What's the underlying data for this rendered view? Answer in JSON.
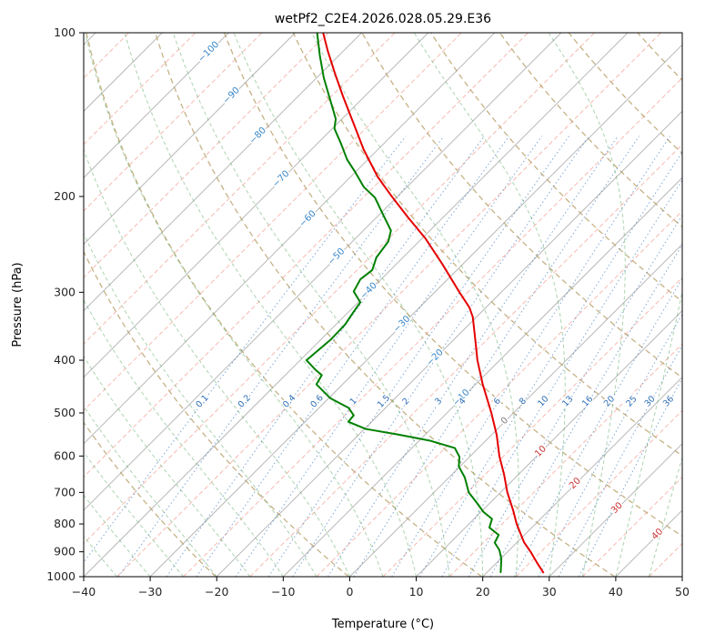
{
  "title": "wetPf2_C2E4.2026.028.05.29.E36",
  "chart_data": {
    "type": "line",
    "variant": "skewT-logP-sounding",
    "title": "wetPf2_C2E4.2026.028.05.29.E36",
    "xlabel": "Temperature (°C)",
    "ylabel": "Pressure (hPa)",
    "xlim": [
      -40,
      50
    ],
    "pressure_lim": [
      1000,
      100
    ],
    "y_scale": "log",
    "skew_c_per_decade": 81.8,
    "x_tick_values": [
      -40,
      -30,
      -20,
      -10,
      0,
      10,
      20,
      30,
      40,
      50
    ],
    "x_tick_labels": [
      "−40",
      "−30",
      "−20",
      "−10",
      "0",
      "10",
      "20",
      "30",
      "40",
      "50"
    ],
    "y_tick_values": [
      100,
      200,
      300,
      400,
      500,
      600,
      700,
      800,
      900,
      1000
    ],
    "y_tick_labels": [
      "100",
      "200",
      "300",
      "400",
      "500",
      "600",
      "700",
      "800",
      "900",
      "1000"
    ],
    "grid": {
      "isotherm_step_c": 10,
      "isotherm_range": [
        -160,
        50
      ],
      "dry_adiabat_theta_k_range": [
        233,
        473,
        20
      ],
      "moist_adiabat_start_c_range": [
        -40,
        60,
        5
      ],
      "mixing_ratio_g_kg": [
        0.1,
        0.2,
        0.4,
        0.6,
        1,
        1.5,
        2,
        3,
        4,
        6,
        8,
        10,
        13,
        16,
        20,
        25,
        30,
        36
      ],
      "mixing_ratio_labels": [
        "0.1",
        "0.2",
        "0.4",
        "0.6",
        "1",
        "1.5",
        "2",
        "3",
        "4",
        "6",
        "8",
        "10",
        "13",
        "16",
        "20",
        "25",
        "30",
        "36"
      ],
      "mixing_label_pressure_hpa": 474,
      "mixing_line_top_hpa": 150
    },
    "isotherm_labels": [
      {
        "t": -100,
        "p": 108,
        "label": "−100"
      },
      {
        "t": -90,
        "p": 130,
        "label": "−90"
      },
      {
        "t": -80,
        "p": 154,
        "label": "−80"
      },
      {
        "t": -70,
        "p": 185,
        "label": "−70"
      },
      {
        "t": -60,
        "p": 219,
        "label": "−60"
      },
      {
        "t": -50,
        "p": 257,
        "label": "−50"
      },
      {
        "t": -40,
        "p": 297,
        "label": "−40"
      },
      {
        "t": -30,
        "p": 342,
        "label": "−30"
      },
      {
        "t": -20,
        "p": 394,
        "label": "−20"
      },
      {
        "t": -10,
        "p": 467,
        "label": "−10"
      },
      {
        "t": 0,
        "p": 515,
        "label": "0"
      },
      {
        "t": 10,
        "p": 586,
        "label": "10"
      },
      {
        "t": 20,
        "p": 671,
        "label": "20"
      },
      {
        "t": 30,
        "p": 745,
        "label": "30"
      },
      {
        "t": 40,
        "p": 832,
        "label": "40"
      }
    ],
    "colors": {
      "isotherm": "rgba(125,125,125,0.55)",
      "isotherm_between": "rgba(238,118,100,0.5)",
      "dry_adiabat": "rgba(178,152,92,0.75)",
      "moist_adiabat": "rgba(70,160,80,0.45)",
      "mixing_ratio": "rgba(45,110,185,0.6)",
      "label_negative": "#3a87c8",
      "label_zero": "#808080",
      "label_positive": "#cc3333",
      "mixing_label": "#2d6eb5",
      "temperature": "#e50000",
      "dewpoint": "#008000",
      "frame": "#000000",
      "tick_text": "#262626"
    },
    "series": [
      {
        "name": "temperature",
        "points": [
          [
            -4.0,
            100
          ],
          [
            -3.3,
            108
          ],
          [
            -2.2,
            119
          ],
          [
            -1.0,
            131
          ],
          [
            0.5,
            146
          ],
          [
            2.1,
            164
          ],
          [
            4.2,
            184
          ],
          [
            6.2,
            199
          ],
          [
            8.7,
            218
          ],
          [
            11.4,
            239
          ],
          [
            13.9,
            266
          ],
          [
            16.5,
            300
          ],
          [
            18.0,
            320
          ],
          [
            18.5,
            333
          ],
          [
            18.8,
            359
          ],
          [
            19.2,
            400
          ],
          [
            20.0,
            443
          ],
          [
            21.3,
            500
          ],
          [
            22.1,
            549
          ],
          [
            22.5,
            600
          ],
          [
            23.2,
            648
          ],
          [
            23.7,
            700
          ],
          [
            24.6,
            757
          ],
          [
            25.1,
            800
          ],
          [
            26.2,
            864
          ],
          [
            27.2,
            900
          ],
          [
            28.1,
            940
          ],
          [
            29.1,
            982
          ]
        ]
      },
      {
        "name": "dewpoint",
        "points": [
          [
            -4.9,
            100
          ],
          [
            -4.5,
            110
          ],
          [
            -3.9,
            121
          ],
          [
            -3.0,
            132
          ],
          [
            -2.1,
            144
          ],
          [
            -2.3,
            150
          ],
          [
            -1.3,
            160
          ],
          [
            -0.4,
            171
          ],
          [
            0.9,
            181
          ],
          [
            2.1,
            192
          ],
          [
            3.8,
            201
          ],
          [
            5.1,
            217
          ],
          [
            6.2,
            231
          ],
          [
            5.8,
            242
          ],
          [
            4.0,
            259
          ],
          [
            3.4,
            273
          ],
          [
            1.6,
            284
          ],
          [
            0.6,
            299
          ],
          [
            1.6,
            313
          ],
          [
            0.5,
            327
          ],
          [
            -0.7,
            344
          ],
          [
            -2.9,
            367
          ],
          [
            -6.5,
            400
          ],
          [
            -5.1,
            417
          ],
          [
            -4.2,
            426
          ],
          [
            -5.0,
            443
          ],
          [
            -2.9,
            470
          ],
          [
            -0.2,
            489
          ],
          [
            0.6,
            505
          ],
          [
            -0.2,
            519
          ],
          [
            2.4,
            535
          ],
          [
            7.3,
            548
          ],
          [
            12.0,
            562
          ],
          [
            15.8,
            580
          ],
          [
            16.5,
            602
          ],
          [
            16.4,
            627
          ],
          [
            17.3,
            657
          ],
          [
            17.9,
            700
          ],
          [
            19.1,
            731
          ],
          [
            20.1,
            760
          ],
          [
            21.4,
            783
          ],
          [
            21.0,
            812
          ],
          [
            22.4,
            838
          ],
          [
            21.8,
            866
          ],
          [
            22.5,
            893
          ],
          [
            22.8,
            928
          ],
          [
            22.7,
            981
          ]
        ]
      }
    ]
  }
}
